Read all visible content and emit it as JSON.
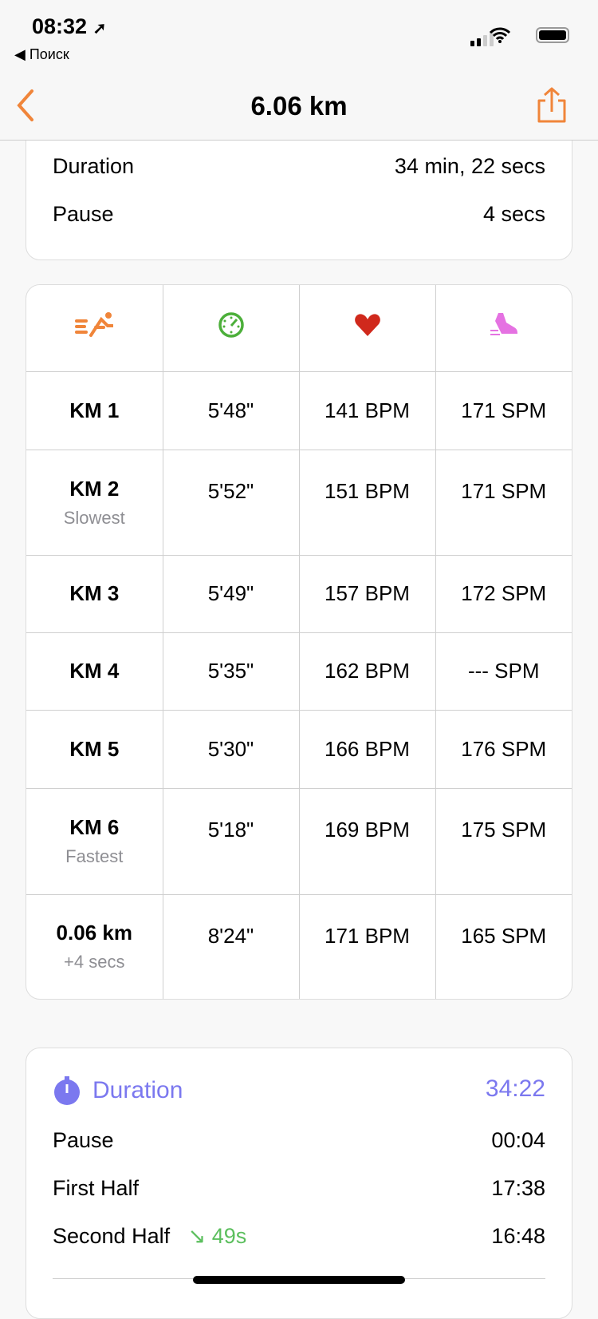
{
  "status_bar": {
    "time": "08:32",
    "back_app": "◀ Поиск"
  },
  "nav": {
    "title": "6.06 km",
    "accent": "#f0853a"
  },
  "summary": [
    {
      "label": "Duration",
      "value": "34 min, 22 secs"
    },
    {
      "label": "Pause",
      "value": "4 secs"
    }
  ],
  "splits": {
    "header_icons": [
      "runner-icon",
      "pace-gauge-icon",
      "heart-icon",
      "shoe-icon"
    ],
    "rows": [
      {
        "split": "KM 1",
        "note": "",
        "pace": "5'48\"",
        "hr": "141 BPM",
        "cadence": "171 SPM"
      },
      {
        "split": "KM 2",
        "note": "Slowest",
        "pace": "5'52\"",
        "hr": "151 BPM",
        "cadence": "171 SPM"
      },
      {
        "split": "KM 3",
        "note": "",
        "pace": "5'49\"",
        "hr": "157 BPM",
        "cadence": "172 SPM"
      },
      {
        "split": "KM 4",
        "note": "",
        "pace": "5'35\"",
        "hr": "162 BPM",
        "cadence": "--- SPM"
      },
      {
        "split": "KM 5",
        "note": "",
        "pace": "5'30\"",
        "hr": "166 BPM",
        "cadence": "176 SPM"
      },
      {
        "split": "KM 6",
        "note": "Fastest",
        "pace": "5'18\"",
        "hr": "169 BPM",
        "cadence": "175 SPM"
      },
      {
        "split": "0.06 km",
        "note": "+4 secs",
        "pace": "8'24\"",
        "hr": "171 BPM",
        "cadence": "165 SPM"
      }
    ]
  },
  "duration": {
    "title": "Duration",
    "total": "34:22",
    "pause_label": "Pause",
    "pause": "00:04",
    "first_label": "First Half",
    "first": "17:38",
    "second_label": "Second Half",
    "delta": "↘ 49s",
    "second": "16:48"
  }
}
